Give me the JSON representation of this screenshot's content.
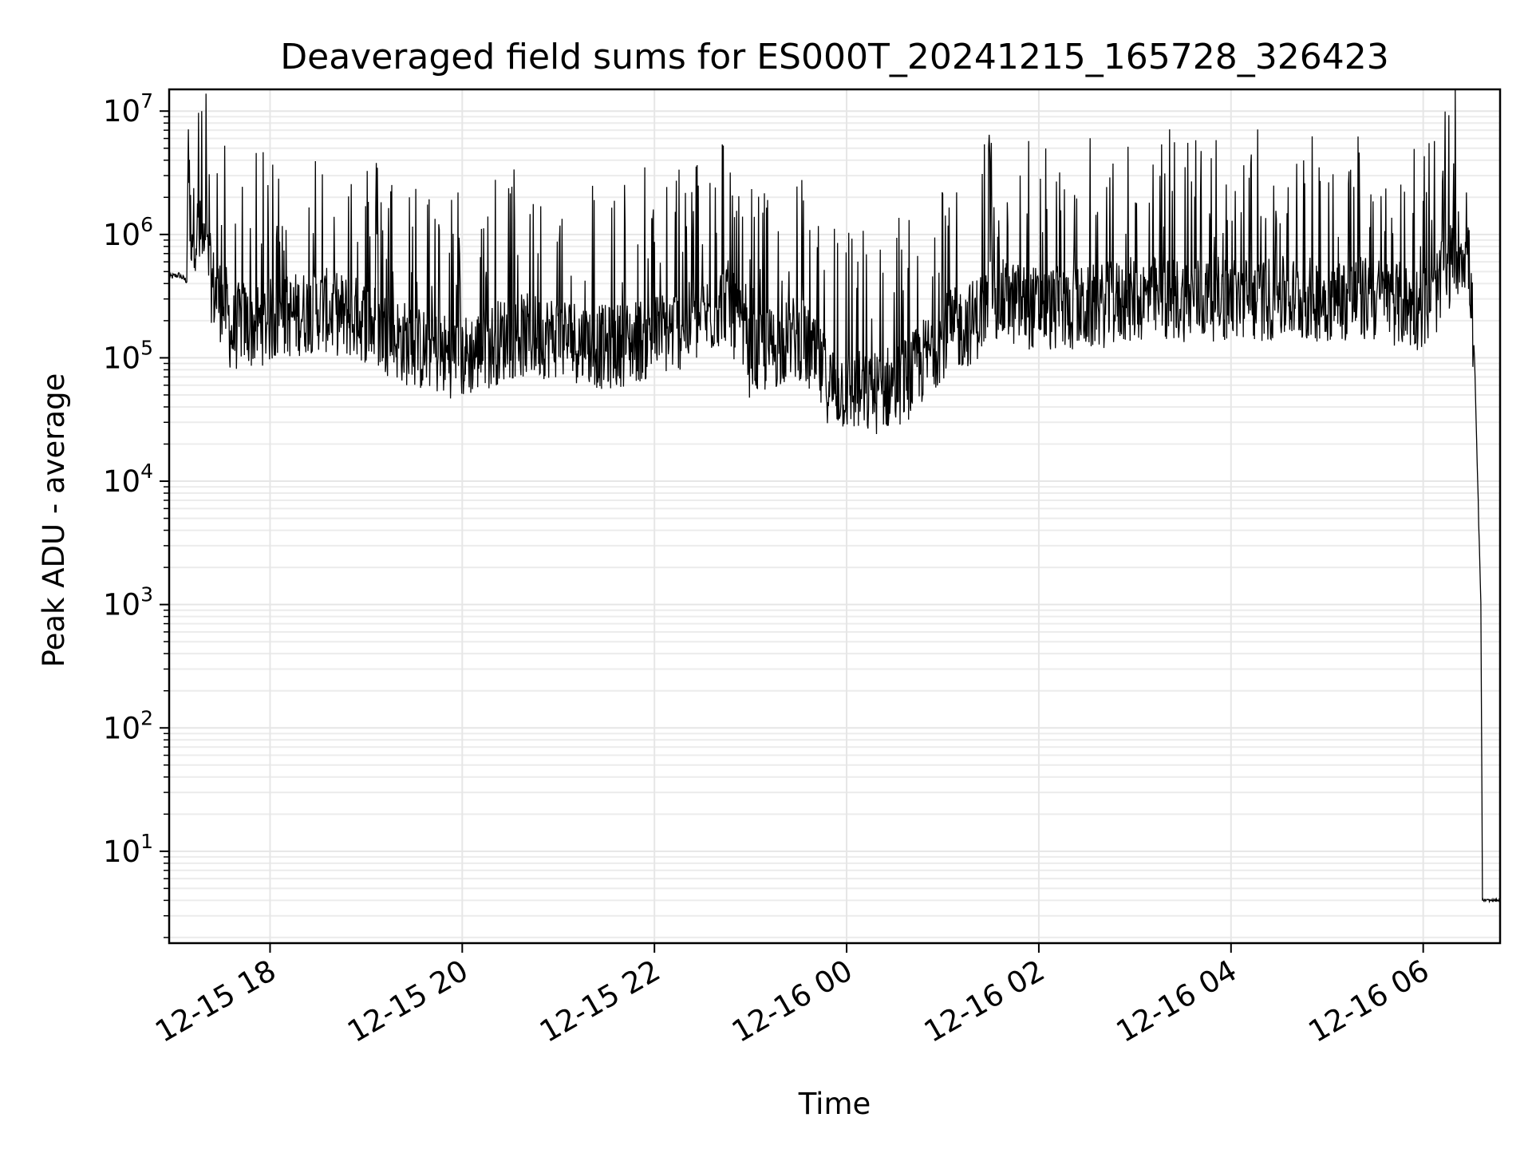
{
  "chart_data": {
    "type": "line",
    "title": "Deaveraged field sums for ES000T_20241215_165728_326423",
    "xlabel": "Time",
    "ylabel": "Peak ADU - average",
    "y_scale": "log",
    "ylim": [
      1.8,
      15000000
    ],
    "xlim": [
      "2024-12-15 16:57",
      "2024-12-16 06:48"
    ],
    "grid": "major and minor on both axes, light gray",
    "legend": "none",
    "line_color": "#000000",
    "x_ticks": [
      "12-15 18",
      "12-15 20",
      "12-15 22",
      "12-16 00",
      "12-16 02",
      "12-16 04",
      "12-16 06"
    ],
    "x_tick_times": [
      "2024-12-15 18:00",
      "2024-12-15 20:00",
      "2024-12-15 22:00",
      "2024-12-16 00:00",
      "2024-12-16 02:00",
      "2024-12-16 04:00",
      "2024-12-16 06:00"
    ],
    "y_ticks": [
      {
        "base": "10",
        "exp": "1",
        "value": 10
      },
      {
        "base": "10",
        "exp": "2",
        "value": 100
      },
      {
        "base": "10",
        "exp": "3",
        "value": 1000
      },
      {
        "base": "10",
        "exp": "4",
        "value": 10000
      },
      {
        "base": "10",
        "exp": "5",
        "value": 100000
      },
      {
        "base": "10",
        "exp": "6",
        "value": 1000000
      },
      {
        "base": "10",
        "exp": "7",
        "value": 10000000
      }
    ],
    "series": [
      {
        "x": [
          "2024-12-15 16:57",
          "2024-12-15 17:03",
          "2024-12-15 17:08",
          "2024-12-15 17:09",
          "2024-12-15 17:10",
          "2024-12-15 17:13",
          "2024-12-15 17:18",
          "2024-12-15 17:25",
          "2024-12-15 17:33",
          "2024-12-15 17:36",
          "2024-12-15 17:42",
          "2024-12-15 17:48",
          "2024-12-15 18:00",
          "2024-12-15 18:30",
          "2024-12-15 19:00",
          "2024-12-15 19:30",
          "2024-12-15 20:00",
          "2024-12-15 20:30",
          "2024-12-15 21:00",
          "2024-12-15 21:30",
          "2024-12-15 22:00",
          "2024-12-15 22:30",
          "2024-12-15 22:45",
          "2024-12-15 23:00",
          "2024-12-15 23:30",
          "2024-12-15 23:50",
          "2024-12-16 00:15",
          "2024-12-16 00:40",
          "2024-12-16 01:00",
          "2024-12-16 01:20",
          "2024-12-16 01:30",
          "2024-12-16 02:00",
          "2024-12-16 02:30",
          "2024-12-16 03:00",
          "2024-12-16 03:30",
          "2024-12-16 04:00",
          "2024-12-16 04:30",
          "2024-12-16 05:00",
          "2024-12-16 05:30",
          "2024-12-16 06:00",
          "2024-12-16 06:12",
          "2024-12-16 06:20",
          "2024-12-16 06:25",
          "2024-12-16 06:29",
          "2024-12-16 06:32",
          "2024-12-16 06:34",
          "2024-12-16 06:36",
          "2024-12-16 06:37",
          "2024-12-16 06:48"
        ],
        "y": [
          450000,
          470000,
          420000,
          7500000,
          1200000,
          1150000,
          800000,
          350000,
          250000,
          150000,
          200000,
          180000,
          200000,
          250000,
          200000,
          120000,
          100000,
          150000,
          150000,
          120000,
          150000,
          200000,
          300000,
          100000,
          150000,
          60000,
          50000,
          70000,
          150000,
          200000,
          300000,
          250000,
          250000,
          300000,
          300000,
          300000,
          300000,
          300000,
          300000,
          250000,
          400000,
          700000,
          800000,
          500000,
          100000,
          10000,
          1000,
          4,
          4
        ]
      }
    ]
  }
}
